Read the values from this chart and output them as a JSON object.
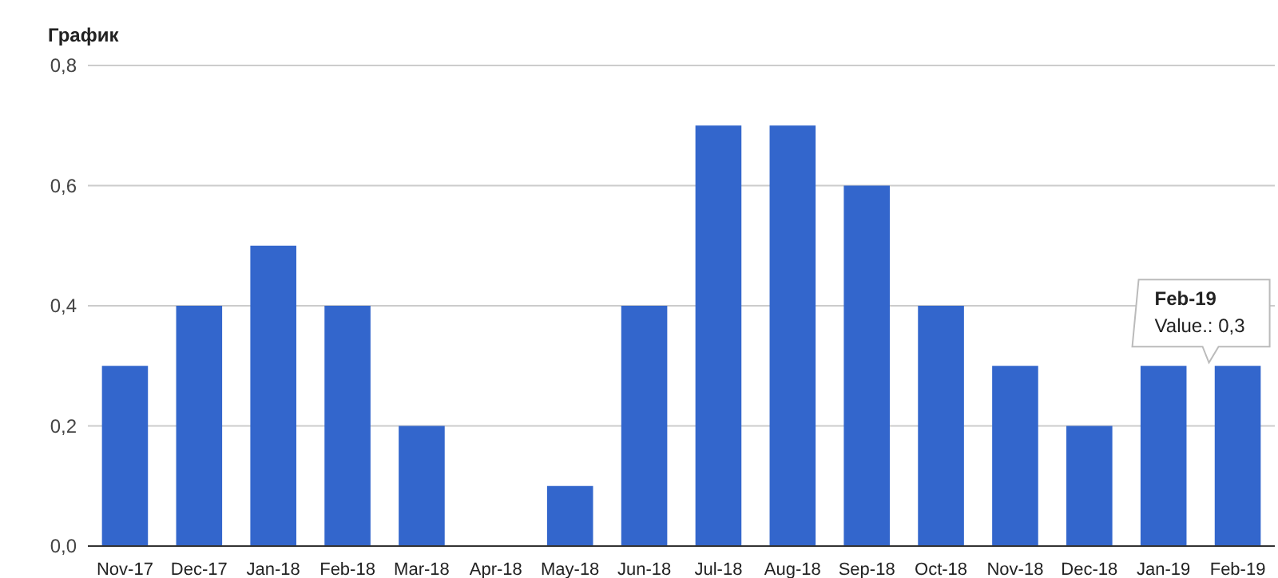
{
  "chart_data": {
    "type": "bar",
    "title": "График",
    "categories": [
      "Nov-17",
      "Dec-17",
      "Jan-18",
      "Feb-18",
      "Mar-18",
      "Apr-18",
      "May-18",
      "Jun-18",
      "Jul-18",
      "Aug-18",
      "Sep-18",
      "Oct-18",
      "Nov-18",
      "Dec-18",
      "Jan-19",
      "Feb-19"
    ],
    "values": [
      0.3,
      0.4,
      0.5,
      0.4,
      0.2,
      0,
      0.1,
      0.4,
      0.7,
      0.7,
      0.6,
      0.4,
      0.3,
      0.2,
      0.3,
      0.3
    ],
    "color": "#3366cc",
    "ylim": [
      0,
      0.8
    ],
    "yticks": [
      {
        "value": 0,
        "label": "0,0"
      },
      {
        "value": 0.2,
        "label": "0,2"
      },
      {
        "value": 0.4,
        "label": "0,4"
      },
      {
        "value": 0.6,
        "label": "0,6"
      },
      {
        "value": 0.8,
        "label": "0,8"
      }
    ],
    "grid": "y",
    "annotations": [
      {
        "text": "Feb-19\nValue.: 0,3",
        "x": "Feb-19",
        "y": 0.3
      }
    ]
  }
}
